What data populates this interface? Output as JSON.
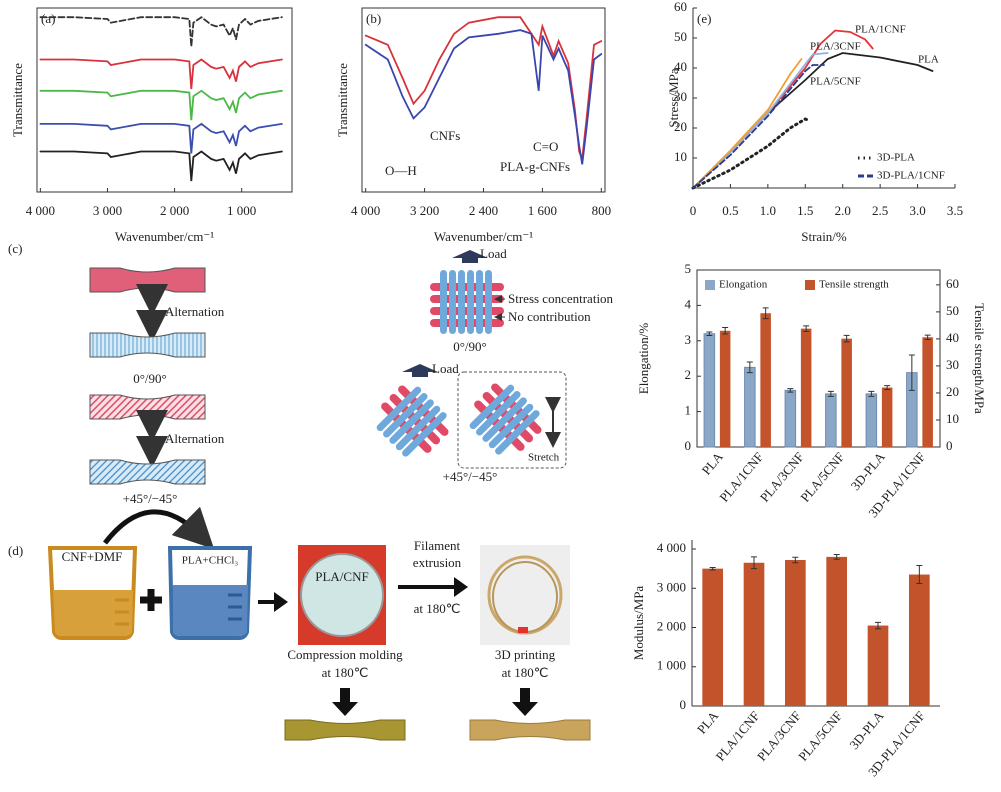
{
  "chart_data": [
    {
      "type": "line",
      "panel": "(a)",
      "y_label": "Transmittance",
      "x_label": "Wavenumber/cm⁻¹",
      "xlim": [
        4050,
        250
      ],
      "xticks": [
        {
          "value": 4000,
          "label": "4 000"
        },
        {
          "value": 3000,
          "label": "3 000"
        },
        {
          "value": 2000,
          "label": "2 000"
        },
        {
          "value": 1000,
          "label": "1 000"
        }
      ],
      "ylim": [
        0,
        100
      ],
      "x": [
        4000,
        3500,
        3000,
        2950,
        2500,
        2000,
        1780,
        1750,
        1720,
        1600,
        1455,
        1380,
        1270,
        1180,
        1130,
        1085,
        1040,
        950,
        870,
        750,
        400
      ],
      "series": [
        {
          "color": "#333333",
          "dash": "dashed",
          "values": [
            95,
            95,
            94,
            92,
            95,
            95,
            94,
            79,
            92,
            95,
            91,
            90,
            91,
            85,
            89,
            83,
            91,
            94,
            91,
            93,
            95
          ]
        },
        {
          "color": "#d8323c",
          "values": [
            72,
            72,
            71,
            69,
            72,
            72,
            71,
            56,
            69,
            72,
            68,
            67,
            68,
            62,
            66,
            60,
            68,
            71,
            68,
            70,
            72
          ]
        },
        {
          "color": "#4cb848",
          "values": [
            55,
            55,
            54,
            52,
            55,
            55,
            54,
            39,
            52,
            55,
            51,
            50,
            51,
            45,
            49,
            43,
            51,
            54,
            51,
            53,
            55
          ]
        },
        {
          "color": "#3a4fb0",
          "values": [
            37,
            37,
            36,
            34,
            37,
            37,
            36,
            21,
            34,
            37,
            33,
            32,
            33,
            27,
            31,
            25,
            33,
            36,
            33,
            35,
            37
          ]
        },
        {
          "color": "#222222",
          "values": [
            22,
            22,
            21,
            19,
            22,
            22,
            21,
            6,
            19,
            22,
            18,
            17,
            18,
            12,
            16,
            10,
            18,
            21,
            18,
            20,
            22
          ]
        }
      ]
    },
    {
      "type": "line",
      "panel": "(b)",
      "y_label": "Transmittance",
      "x_label": "Wavenumber/cm⁻¹",
      "xlim": [
        4050,
        750
      ],
      "xticks": [
        {
          "value": 4000,
          "label": "4 000"
        },
        {
          "value": 3200,
          "label": "3 200"
        },
        {
          "value": 2400,
          "label": "2 400"
        },
        {
          "value": 1600,
          "label": "1 600"
        },
        800
      ],
      "ylim": [
        0,
        100
      ],
      "x": [
        4000,
        3700,
        3500,
        3350,
        3200,
        3000,
        2800,
        2600,
        2200,
        1900,
        1750,
        1650,
        1600,
        1450,
        1380,
        1250,
        1160,
        1100,
        1060,
        1000,
        900,
        800
      ],
      "series": [
        {
          "color": "#d8323c",
          "values": [
            85,
            80,
            62,
            48,
            55,
            72,
            86,
            92,
            95,
            95,
            86,
            80,
            90,
            74,
            82,
            70,
            45,
            22,
            18,
            40,
            80,
            82
          ]
        },
        {
          "color": "#3a45b0",
          "values": [
            80,
            72,
            52,
            40,
            46,
            62,
            78,
            84,
            86,
            88,
            86,
            55,
            85,
            72,
            78,
            66,
            42,
            25,
            15,
            35,
            72,
            75
          ]
        }
      ],
      "annotations": [
        "CNFs",
        "O—H",
        "C=O",
        "PLA-g-CNFs"
      ]
    },
    {
      "type": "line",
      "panel": "(e)",
      "y_label": "Stress/MPa",
      "x_label": "Strain/%",
      "xlim": [
        0,
        3.5
      ],
      "xticks": [
        0,
        0.5,
        {
          "value": 1,
          "label": "1.0"
        },
        1.5,
        {
          "value": 2,
          "label": "2.0"
        },
        2.5,
        {
          "value": 3,
          "label": "3.0"
        },
        3.5
      ],
      "ylim": [
        0,
        60
      ],
      "yticks": [
        10,
        20,
        30,
        40,
        50,
        60
      ],
      "legend": "lower right",
      "series": [
        {
          "name": "PLA",
          "color": "#222222",
          "x": [
            0,
            0.5,
            1.0,
            1.5,
            1.8,
            2.0,
            2.5,
            3.0,
            3.2
          ],
          "values": [
            0,
            12,
            25,
            36,
            43,
            45,
            43.5,
            41,
            39
          ]
        },
        {
          "name": "PLA/1CNF",
          "color": "#e8313a",
          "x": [
            0,
            0.5,
            1.0,
            1.5,
            1.7,
            1.9,
            2.1,
            2.3,
            2.4
          ],
          "values": [
            0,
            12,
            25,
            40,
            48,
            52.5,
            52,
            49.5,
            46.5
          ]
        },
        {
          "name": "PLA/3CNF",
          "color": "#8fb3e0",
          "x": [
            0,
            0.5,
            1.0,
            1.4,
            1.6,
            1.8
          ],
          "values": [
            0,
            12,
            25,
            38,
            44.5,
            45
          ]
        },
        {
          "name": "PLA/5CNF",
          "color": "#f0a030",
          "x": [
            0,
            0.5,
            1.0,
            1.3,
            1.45
          ],
          "values": [
            0,
            12.5,
            26,
            38,
            43
          ]
        },
        {
          "name": "3D-PLA",
          "color": "#222222",
          "dash": "dotted",
          "x": [
            0,
            0.5,
            1.0,
            1.3,
            1.5,
            1.55
          ],
          "values": [
            0,
            6,
            14,
            20,
            23,
            22.5
          ]
        },
        {
          "name": "3D-PLA/1CNF",
          "color": "#2b3a8c",
          "dash": "dashed",
          "x": [
            0,
            0.5,
            1.0,
            1.3,
            1.5,
            1.6,
            1.75
          ],
          "values": [
            0,
            11,
            24,
            33,
            39,
            41,
            41
          ]
        }
      ]
    },
    {
      "type": "bar",
      "y_label": "Elongation/%",
      "y2_label": "Tensile strength/MPa",
      "categories": [
        "PLA",
        "PLA/1CNF",
        "PLA/3CNF",
        "PLA/5CNF",
        "3D-PLA",
        "3D-PLA/1CNF"
      ],
      "ylim": [
        0,
        5
      ],
      "yticks": [
        0,
        1,
        2,
        3,
        4,
        5
      ],
      "y2lim": [
        0,
        65.5
      ],
      "y2ticks": [
        0,
        10,
        20,
        30,
        40,
        50,
        60
      ],
      "legend": "top",
      "series": [
        {
          "name": "Elongation",
          "color": "#8aa7c8",
          "values": [
            3.2,
            2.25,
            1.6,
            1.5,
            1.5,
            2.1
          ],
          "errors": [
            0.05,
            0.15,
            0.05,
            0.07,
            0.07,
            0.5
          ]
        },
        {
          "name": "Tensile strength",
          "color": "#c3532a",
          "axis": "y2",
          "values": [
            43,
            49.5,
            43.8,
            40.1,
            22,
            40.6
          ],
          "errors": [
            1.2,
            2,
            1,
            1.2,
            0.7,
            0.8
          ]
        }
      ]
    },
    {
      "type": "bar",
      "y_label": "Modulus/MPa",
      "categories": [
        "PLA",
        "PLA/1CNF",
        "PLA/3CNF",
        "PLA/5CNF",
        "3D-PLA",
        "3D-PLA/1CNF"
      ],
      "ylim": [
        0,
        4230
      ],
      "yticks": [
        0,
        {
          "value": 1000,
          "label": "1 000"
        },
        {
          "value": 2000,
          "label": "2 000"
        },
        {
          "value": 3000,
          "label": "3 000"
        },
        {
          "value": 4000,
          "label": "4 000"
        }
      ],
      "color": "#c3532a",
      "values": [
        3500,
        3650,
        3720,
        3800,
        2050,
        3350
      ],
      "errors": [
        30,
        150,
        70,
        60,
        80,
        230
      ]
    }
  ],
  "diagram_c": {
    "label": "(c)",
    "alternation": [
      "Alternation",
      "Alternation"
    ],
    "orientation": [
      "0°/90°",
      "+45°/−45°"
    ],
    "load": [
      "Load",
      "Load"
    ],
    "stress_concentration": "Stress concentration",
    "no_contribution": "No contribution",
    "lattice_orientation": [
      "0°/90°",
      "+45°/−45°"
    ],
    "stretch": "Stretch"
  },
  "diagram_d": {
    "label": "(d)",
    "beakers": [
      "CNF+DMF",
      "PLA+CHCl₃"
    ],
    "sample": "PLA/CNF",
    "extrusion": [
      "Filament",
      "extrusion",
      "at 180℃"
    ],
    "compression": [
      "Compression molding",
      "at 180℃"
    ],
    "printing": [
      "3D printing",
      "at 180℃"
    ]
  }
}
